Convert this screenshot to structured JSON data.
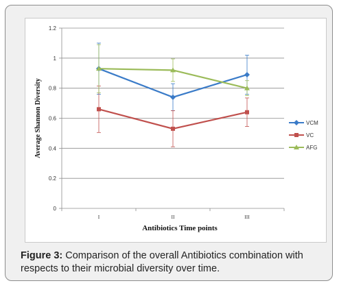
{
  "chart_data": {
    "type": "line",
    "categories": [
      "I",
      "II",
      "III"
    ],
    "ylabel": "Average Shannon Diversity",
    "xlabel": "Antibiotics Time points",
    "ylim": [
      0,
      1.2
    ],
    "yticks": [
      "0",
      "0.2",
      "0.4",
      "0.6",
      "0.8",
      "1",
      "1.2"
    ],
    "grid": true,
    "legend_position": "right",
    "series": [
      {
        "name": "VCM",
        "color": "#3a7bc8",
        "marker": "diamond",
        "values": [
          0.93,
          0.74,
          0.89
        ],
        "errors": [
          0.17,
          0.09,
          0.13
        ]
      },
      {
        "name": "VC",
        "color": "#c0504d",
        "marker": "square",
        "values": [
          0.66,
          0.53,
          0.64
        ],
        "errors": [
          0.155,
          0.12,
          0.095
        ]
      },
      {
        "name": "AFG",
        "color": "#9bbb59",
        "marker": "triangle",
        "values": [
          0.93,
          0.92,
          0.8
        ],
        "errors": [
          0.16,
          0.075,
          0.05
        ]
      }
    ]
  },
  "caption": {
    "label": "Figure 3:",
    "text": " Comparison of the overall Antibiotics combination with respects to their microbial diversity over time."
  }
}
